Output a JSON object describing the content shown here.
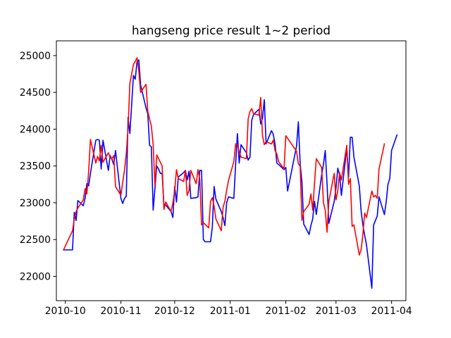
{
  "chart_data": {
    "type": "line",
    "title": "hangseng price result 1~2 period",
    "xlabel": "",
    "ylabel": "",
    "x_ticks": [
      "2010-10",
      "2010-11",
      "2010-12",
      "2011-01",
      "2011-02",
      "2011-03",
      "2011-04"
    ],
    "y_ticks": [
      "22000",
      "22500",
      "23000",
      "23500",
      "24000",
      "24500",
      "25000"
    ],
    "xlim": [
      "2010-09-26",
      "2011-04-09"
    ],
    "ylim": [
      21670,
      25200
    ],
    "grid": false,
    "legend": "none",
    "series": [
      {
        "color": "#0000ff",
        "points": [
          [
            "2010-09-30",
            22360
          ],
          [
            "2010-10-05",
            22360
          ],
          [
            "2010-10-06",
            22870
          ],
          [
            "2010-10-07",
            22760
          ],
          [
            "2010-10-08",
            23030
          ],
          [
            "2010-10-11",
            22960
          ],
          [
            "2010-10-12",
            23060
          ],
          [
            "2010-10-13",
            23260
          ],
          [
            "2010-10-14",
            23230
          ],
          [
            "2010-10-15",
            23400
          ],
          [
            "2010-10-18",
            23850
          ],
          [
            "2010-10-19",
            23860
          ],
          [
            "2010-10-20",
            23850
          ],
          [
            "2010-10-21",
            23460
          ],
          [
            "2010-10-22",
            23850
          ],
          [
            "2010-10-25",
            23440
          ],
          [
            "2010-10-26",
            23640
          ],
          [
            "2010-10-27",
            23590
          ],
          [
            "2010-10-28",
            23520
          ],
          [
            "2010-10-29",
            23710
          ],
          [
            "2010-11-01",
            23060
          ],
          [
            "2010-11-02",
            22990
          ],
          [
            "2010-11-03",
            23060
          ],
          [
            "2010-11-04",
            23090
          ],
          [
            "2010-11-05",
            24160
          ],
          [
            "2010-11-06",
            23940
          ],
          [
            "2010-11-08",
            24730
          ],
          [
            "2010-11-09",
            24680
          ],
          [
            "2010-11-10",
            24920
          ],
          [
            "2010-11-11",
            24940
          ],
          [
            "2010-11-12",
            24600
          ],
          [
            "2010-11-15",
            24290
          ],
          [
            "2010-11-16",
            24210
          ],
          [
            "2010-11-17",
            23780
          ],
          [
            "2010-11-18",
            23760
          ],
          [
            "2010-11-19",
            22900
          ],
          [
            "2010-11-21",
            23500
          ],
          [
            "2010-11-22",
            23460
          ],
          [
            "2010-11-23",
            23400
          ],
          [
            "2010-11-24",
            23400
          ],
          [
            "2010-11-25",
            22970
          ],
          [
            "2010-11-26",
            22970
          ],
          [
            "2010-11-29",
            22880
          ],
          [
            "2010-11-30",
            22800
          ],
          [
            "2010-12-01",
            23220
          ],
          [
            "2010-12-02",
            23010
          ],
          [
            "2010-12-03",
            23350
          ],
          [
            "2010-12-06",
            23410
          ],
          [
            "2010-12-07",
            23440
          ],
          [
            "2010-12-08",
            23310
          ],
          [
            "2010-12-09",
            23430
          ],
          [
            "2010-12-10",
            23060
          ],
          [
            "2010-12-13",
            23070
          ],
          [
            "2010-12-14",
            23080
          ],
          [
            "2010-12-15",
            23440
          ],
          [
            "2010-12-16",
            23440
          ],
          [
            "2010-12-17",
            22500
          ],
          [
            "2010-12-18",
            22470
          ],
          [
            "2010-12-21",
            22470
          ],
          [
            "2010-12-22",
            22670
          ],
          [
            "2010-12-23",
            23220
          ],
          [
            "2010-12-24",
            23050
          ],
          [
            "2010-12-27",
            22880
          ],
          [
            "2010-12-28",
            22800
          ],
          [
            "2010-12-29",
            22690
          ],
          [
            "2010-12-30",
            23000
          ],
          [
            "2010-12-31",
            23080
          ],
          [
            "2011-01-03",
            23060
          ],
          [
            "2011-01-04",
            23520
          ],
          [
            "2011-01-05",
            23940
          ],
          [
            "2011-01-06",
            23540
          ],
          [
            "2011-01-07",
            23790
          ],
          [
            "2011-01-10",
            23680
          ],
          [
            "2011-01-11",
            23580
          ],
          [
            "2011-01-12",
            23620
          ],
          [
            "2011-01-13",
            24120
          ],
          [
            "2011-01-14",
            24200
          ],
          [
            "2011-01-17",
            24270
          ],
          [
            "2011-01-18",
            24070
          ],
          [
            "2011-01-19",
            24150
          ],
          [
            "2011-01-20",
            24400
          ],
          [
            "2011-01-21",
            23800
          ],
          [
            "2011-01-24",
            23980
          ],
          [
            "2011-01-25",
            23930
          ],
          [
            "2011-01-26",
            23800
          ],
          [
            "2011-01-27",
            23540
          ],
          [
            "2011-01-28",
            23520
          ],
          [
            "2011-01-31",
            23450
          ],
          [
            "2011-02-01",
            23480
          ],
          [
            "2011-02-02",
            23160
          ],
          [
            "2011-02-07",
            23770
          ],
          [
            "2011-02-08",
            24100
          ],
          [
            "2011-02-09",
            23530
          ],
          [
            "2011-02-10",
            23280
          ],
          [
            "2011-02-11",
            22710
          ],
          [
            "2011-02-14",
            22570
          ],
          [
            "2011-02-15",
            22690
          ],
          [
            "2011-02-16",
            22780
          ],
          [
            "2011-02-17",
            23020
          ],
          [
            "2011-02-18",
            22840
          ],
          [
            "2011-02-21",
            23380
          ],
          [
            "2011-02-22",
            23520
          ],
          [
            "2011-02-23",
            23710
          ],
          [
            "2011-02-24",
            23260
          ],
          [
            "2011-02-25",
            22720
          ],
          [
            "2011-02-28",
            23020
          ],
          [
            "2011-03-01",
            23200
          ],
          [
            "2011-03-02",
            23470
          ],
          [
            "2011-03-03",
            23380
          ],
          [
            "2011-03-04",
            23100
          ],
          [
            "2011-03-07",
            23740
          ],
          [
            "2011-03-08",
            23350
          ],
          [
            "2011-03-09",
            23890
          ],
          [
            "2011-03-10",
            23890
          ],
          [
            "2011-03-11",
            23620
          ],
          [
            "2011-03-14",
            23230
          ],
          [
            "2011-03-15",
            22890
          ],
          [
            "2011-03-16",
            22700
          ],
          [
            "2011-03-17",
            22560
          ],
          [
            "2011-03-18",
            22430
          ],
          [
            "2011-03-21",
            21840
          ],
          [
            "2011-03-22",
            22700
          ],
          [
            "2011-03-23",
            22760
          ],
          [
            "2011-03-24",
            22820
          ],
          [
            "2011-03-25",
            23080
          ],
          [
            "2011-03-28",
            22840
          ],
          [
            "2011-03-29",
            23010
          ],
          [
            "2011-03-30",
            23250
          ],
          [
            "2011-03-31",
            23330
          ],
          [
            "2011-04-01",
            23710
          ],
          [
            "2011-04-04",
            23920
          ]
        ]
      },
      {
        "color": "#ff0000",
        "points": [
          [
            "2010-09-30",
            22360
          ],
          [
            "2010-10-05",
            22620
          ],
          [
            "2010-10-06",
            22780
          ],
          [
            "2010-10-07",
            22880
          ],
          [
            "2010-10-08",
            22930
          ],
          [
            "2010-10-11",
            23040
          ],
          [
            "2010-10-12",
            23190
          ],
          [
            "2010-10-13",
            23120
          ],
          [
            "2010-10-14",
            23420
          ],
          [
            "2010-10-15",
            23860
          ],
          [
            "2010-10-18",
            23540
          ],
          [
            "2010-10-19",
            23630
          ],
          [
            "2010-10-20",
            23570
          ],
          [
            "2010-10-21",
            23780
          ],
          [
            "2010-10-22",
            23550
          ],
          [
            "2010-10-25",
            23680
          ],
          [
            "2010-10-26",
            23620
          ],
          [
            "2010-10-27",
            23600
          ],
          [
            "2010-10-28",
            23640
          ],
          [
            "2010-10-29",
            23220
          ],
          [
            "2010-11-01",
            23100
          ],
          [
            "2010-11-02",
            23280
          ],
          [
            "2010-11-03",
            23440
          ],
          [
            "2010-11-04",
            23670
          ],
          [
            "2010-11-05",
            24010
          ],
          [
            "2010-11-06",
            24620
          ],
          [
            "2010-11-08",
            24880
          ],
          [
            "2010-11-09",
            24920
          ],
          [
            "2010-11-10",
            24970
          ],
          [
            "2010-11-11",
            24790
          ],
          [
            "2010-11-12",
            24500
          ],
          [
            "2010-11-15",
            24610
          ],
          [
            "2010-11-16",
            24240
          ],
          [
            "2010-11-17",
            24140
          ],
          [
            "2010-11-18",
            24040
          ],
          [
            "2010-11-19",
            23790
          ],
          [
            "2010-11-20",
            23230
          ],
          [
            "2010-11-21",
            23650
          ],
          [
            "2010-11-22",
            23600
          ],
          [
            "2010-11-24",
            23500
          ],
          [
            "2010-11-25",
            22910
          ],
          [
            "2010-11-26",
            23010
          ],
          [
            "2010-11-29",
            22880
          ],
          [
            "2010-11-30",
            23000
          ],
          [
            "2010-12-01",
            23160
          ],
          [
            "2010-12-02",
            23450
          ],
          [
            "2010-12-03",
            23330
          ],
          [
            "2010-12-06",
            23290
          ],
          [
            "2010-12-07",
            23440
          ],
          [
            "2010-12-08",
            23100
          ],
          [
            "2010-12-09",
            23170
          ],
          [
            "2010-12-10",
            23440
          ],
          [
            "2010-12-13",
            23260
          ],
          [
            "2010-12-14",
            23450
          ],
          [
            "2010-12-15",
            23320
          ],
          [
            "2010-12-16",
            22700
          ],
          [
            "2010-12-17",
            22730
          ],
          [
            "2010-12-20",
            22660
          ],
          [
            "2010-12-21",
            23020
          ],
          [
            "2010-12-22",
            23070
          ],
          [
            "2010-12-23",
            22950
          ],
          [
            "2010-12-24",
            22780
          ],
          [
            "2010-12-27",
            22620
          ],
          [
            "2010-12-28",
            22940
          ],
          [
            "2010-12-29",
            23020
          ],
          [
            "2010-12-30",
            23170
          ],
          [
            "2010-12-31",
            23300
          ],
          [
            "2011-01-03",
            23560
          ],
          [
            "2011-01-04",
            23800
          ],
          [
            "2011-01-05",
            23790
          ],
          [
            "2011-01-06",
            23690
          ],
          [
            "2011-01-07",
            23620
          ],
          [
            "2011-01-10",
            23600
          ],
          [
            "2011-01-11",
            24140
          ],
          [
            "2011-01-12",
            24240
          ],
          [
            "2011-01-13",
            24280
          ],
          [
            "2011-01-14",
            24210
          ],
          [
            "2011-01-17",
            24190
          ],
          [
            "2011-01-18",
            24430
          ],
          [
            "2011-01-19",
            23910
          ],
          [
            "2011-01-20",
            23790
          ],
          [
            "2011-01-21",
            23830
          ],
          [
            "2011-01-24",
            23800
          ],
          [
            "2011-01-25",
            23850
          ],
          [
            "2011-01-26",
            23710
          ],
          [
            "2011-01-27",
            23660
          ],
          [
            "2011-01-28",
            23560
          ],
          [
            "2011-01-31",
            23460
          ],
          [
            "2011-02-01",
            23910
          ],
          [
            "2011-02-07",
            23700
          ],
          [
            "2011-02-08",
            23530
          ],
          [
            "2011-02-09",
            23500
          ],
          [
            "2011-02-10",
            22760
          ],
          [
            "2011-02-11",
            22880
          ],
          [
            "2011-02-14",
            22980
          ],
          [
            "2011-02-15",
            23120
          ],
          [
            "2011-02-16",
            22900
          ],
          [
            "2011-02-17",
            23260
          ],
          [
            "2011-02-18",
            23600
          ],
          [
            "2011-02-21",
            23480
          ],
          [
            "2011-02-22",
            23000
          ],
          [
            "2011-02-23",
            22900
          ],
          [
            "2011-02-24",
            22600
          ],
          [
            "2011-02-25",
            23020
          ],
          [
            "2011-02-28",
            23400
          ],
          [
            "2011-03-01",
            23040
          ],
          [
            "2011-03-02",
            23160
          ],
          [
            "2011-03-03",
            23410
          ],
          [
            "2011-03-04",
            23310
          ],
          [
            "2011-03-07",
            23780
          ],
          [
            "2011-03-08",
            23250
          ],
          [
            "2011-03-09",
            23330
          ],
          [
            "2011-03-10",
            22680
          ],
          [
            "2011-03-11",
            22700
          ],
          [
            "2011-03-14",
            22290
          ],
          [
            "2011-03-15",
            22360
          ],
          [
            "2011-03-16",
            22570
          ],
          [
            "2011-03-17",
            22860
          ],
          [
            "2011-03-18",
            22800
          ],
          [
            "2011-03-21",
            23160
          ],
          [
            "2011-03-22",
            23080
          ],
          [
            "2011-03-23",
            23100
          ],
          [
            "2011-03-24",
            23060
          ],
          [
            "2011-03-25",
            23460
          ],
          [
            "2011-03-28",
            23800
          ]
        ]
      }
    ]
  }
}
